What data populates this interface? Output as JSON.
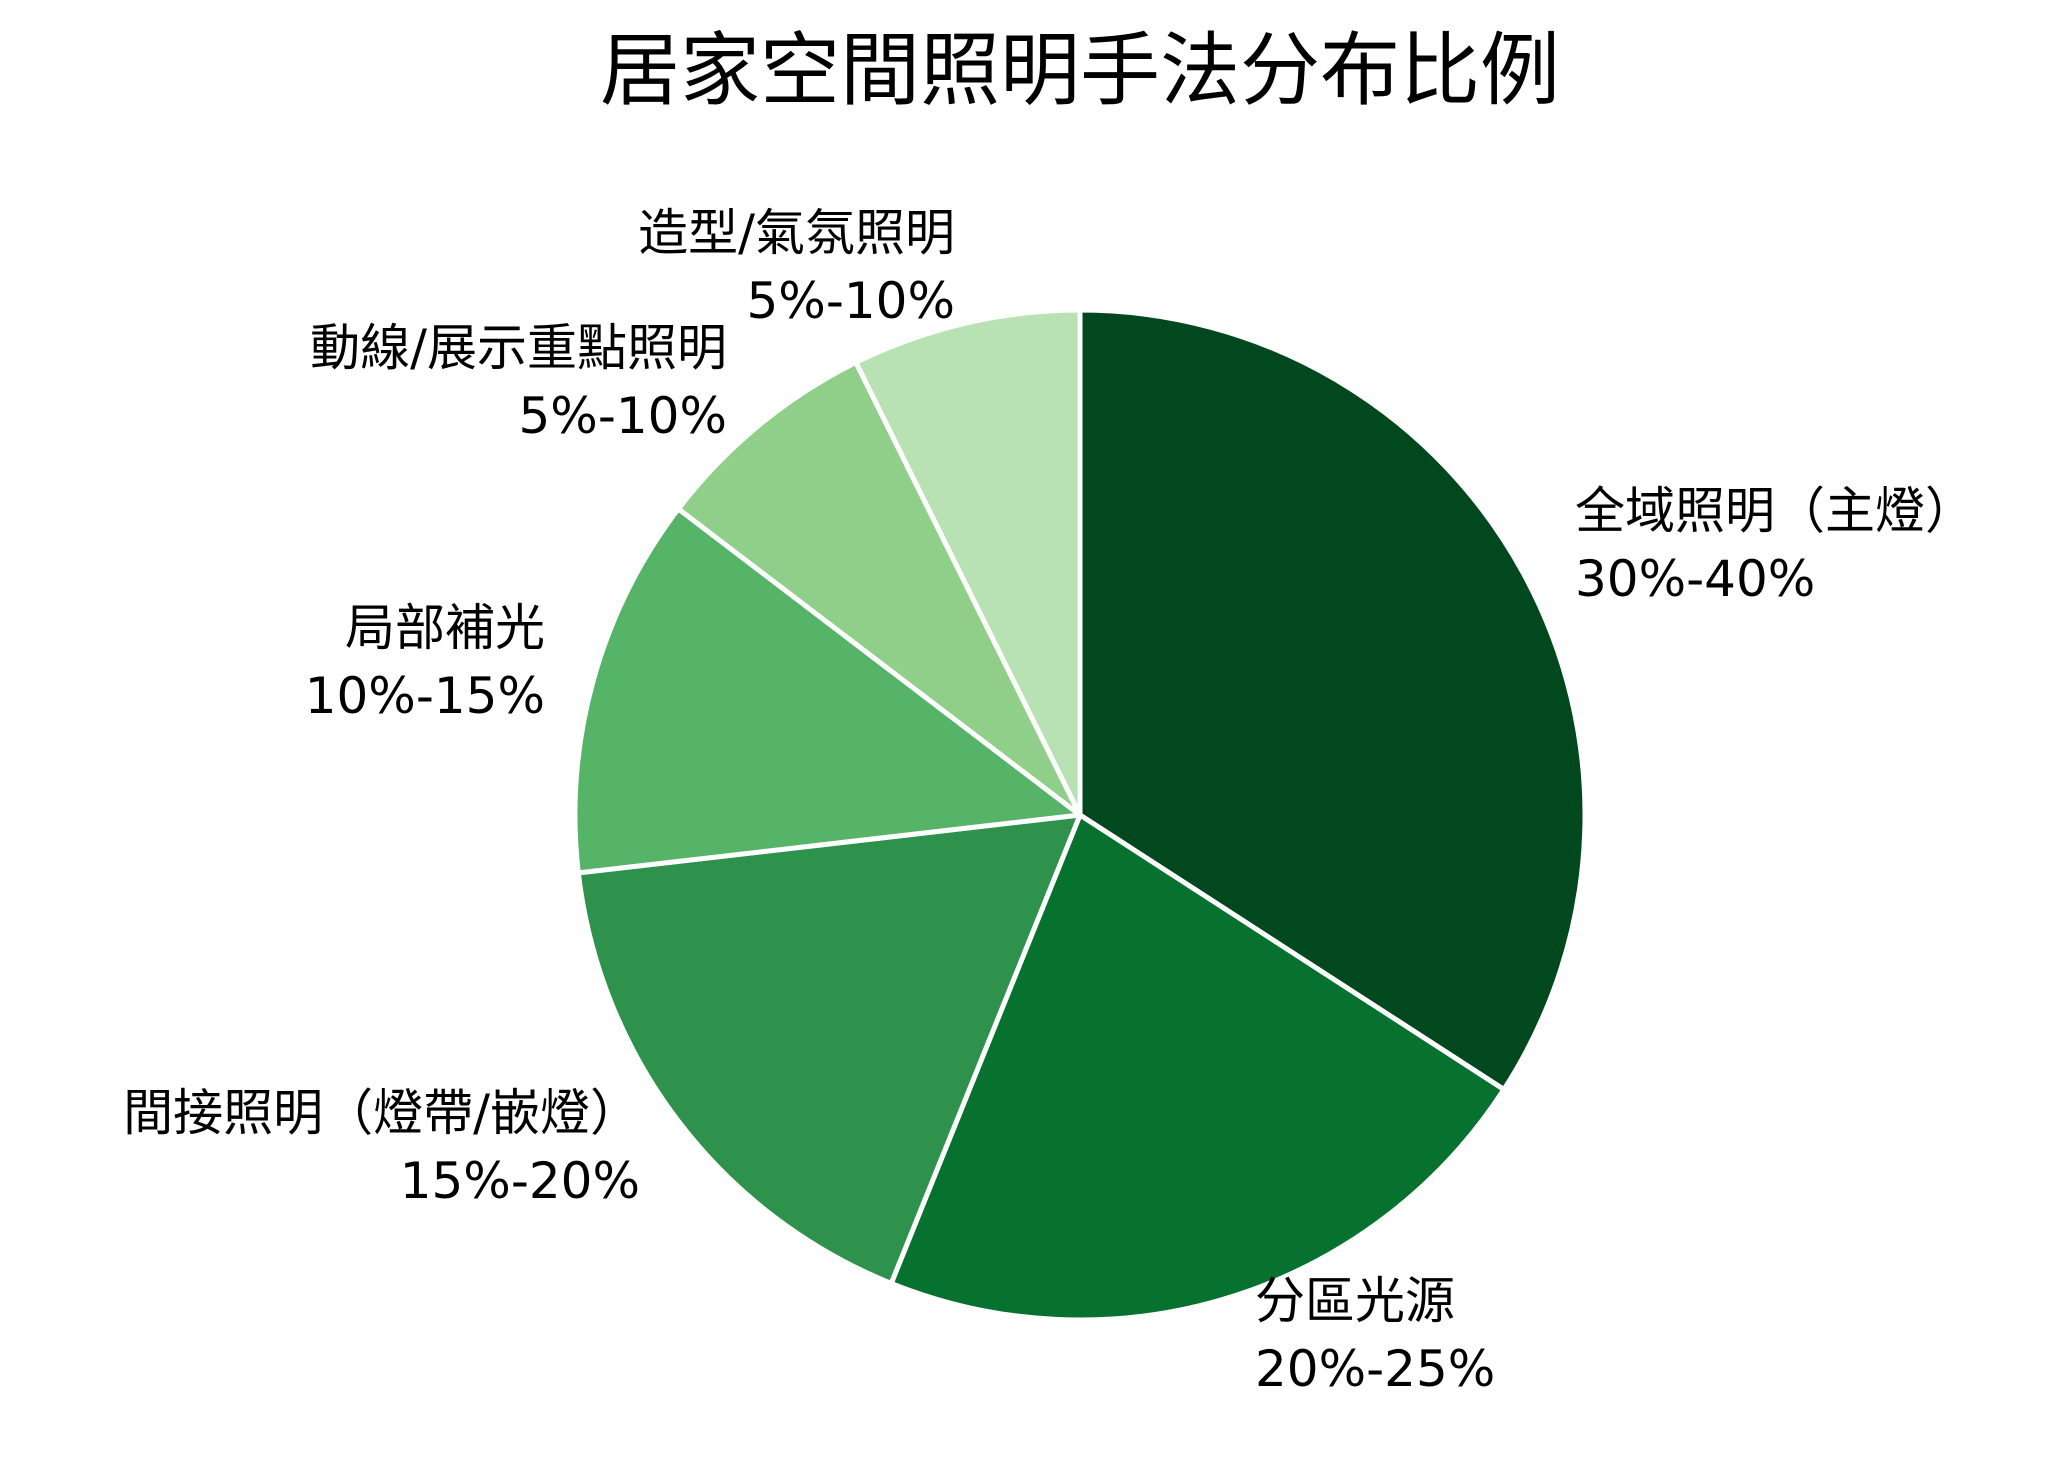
{
  "chart_data": {
    "type": "pie",
    "title": "居家空間照明手法分布比例",
    "slices": [
      {
        "name": "全域照明（主燈）",
        "range_label": "30%-40%",
        "value": 35,
        "color": "#02481f"
      },
      {
        "name": "分區光源",
        "range_label": "20%-25%",
        "value": 22.5,
        "color": "#07712f"
      },
      {
        "name": "間接照明（燈帶/嵌燈）",
        "range_label": "15%-20%",
        "value": 17.5,
        "color": "#2e924c"
      },
      {
        "name": "局部補光",
        "range_label": "10%-15%",
        "value": 12.5,
        "color": "#56b468"
      },
      {
        "name": "動線/展示重點照明",
        "range_label": "5%-10%",
        "value": 7.5,
        "color": "#90cf89"
      },
      {
        "name": "造型/氣氛照明",
        "range_label": "5%-10%",
        "value": 7.5,
        "color": "#b8e2b3"
      }
    ],
    "start_angle": "12 o'clock",
    "direction": "clockwise",
    "legend": "none (labels placed beside slices)",
    "slice_border_color": "#ffffff"
  }
}
